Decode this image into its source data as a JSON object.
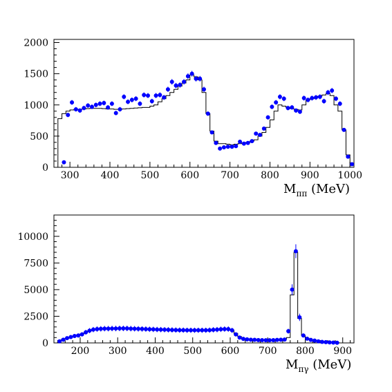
{
  "chart_data": [
    {
      "type": "scatter",
      "xlabel": "M",
      "xlabel_sub": "ππ",
      "xlabel_unit": " (MeV)",
      "xlim": [
        260,
        1010
      ],
      "ylim": [
        0,
        2050
      ],
      "xticks": [
        300,
        400,
        500,
        600,
        700,
        800,
        900,
        1000
      ],
      "yticks": [
        0,
        500,
        1000,
        1500,
        2000
      ],
      "grid": false,
      "colors": {
        "points": "#0000ff",
        "histogram": "#000000"
      },
      "series": [
        {
          "kind": "histogram",
          "bin_width": 10,
          "x": [
            275,
            285,
            295,
            305,
            315,
            325,
            335,
            345,
            355,
            365,
            375,
            385,
            395,
            405,
            415,
            425,
            435,
            445,
            455,
            465,
            475,
            485,
            495,
            505,
            515,
            525,
            535,
            545,
            555,
            565,
            575,
            585,
            595,
            605,
            615,
            625,
            635,
            645,
            655,
            665,
            675,
            685,
            695,
            705,
            715,
            725,
            735,
            745,
            755,
            765,
            775,
            785,
            795,
            805,
            815,
            825,
            835,
            845,
            855,
            865,
            875,
            885,
            895,
            905,
            915,
            925,
            935,
            945,
            955,
            965,
            975,
            985,
            995
          ],
          "y": [
            780,
            860,
            900,
            920,
            930,
            930,
            935,
            940,
            945,
            945,
            945,
            940,
            935,
            935,
            930,
            930,
            935,
            940,
            945,
            950,
            955,
            960,
            960,
            980,
            1000,
            1050,
            1100,
            1150,
            1200,
            1250,
            1300,
            1350,
            1400,
            1480,
            1450,
            1400,
            1200,
            860,
            580,
            420,
            380,
            380,
            370,
            360,
            370,
            380,
            390,
            400,
            420,
            440,
            500,
            560,
            640,
            760,
            900,
            1000,
            980,
            960,
            940,
            930,
            920,
            1000,
            1080,
            1100,
            1120,
            1140,
            1160,
            1180,
            1150,
            1000,
            900,
            600,
            200
          ]
        },
        {
          "kind": "points",
          "x": [
            285,
            295,
            305,
            315,
            325,
            335,
            345,
            355,
            365,
            375,
            385,
            395,
            405,
            415,
            425,
            435,
            445,
            455,
            465,
            475,
            485,
            495,
            505,
            515,
            525,
            535,
            545,
            555,
            565,
            575,
            585,
            595,
            605,
            615,
            625,
            635,
            645,
            655,
            665,
            675,
            685,
            695,
            705,
            715,
            725,
            735,
            745,
            755,
            765,
            775,
            785,
            795,
            805,
            815,
            825,
            835,
            845,
            855,
            865,
            875,
            885,
            895,
            905,
            915,
            925,
            935,
            945,
            955,
            965,
            975,
            985,
            995,
            1005
          ],
          "y": [
            80,
            840,
            1040,
            930,
            910,
            950,
            990,
            970,
            1000,
            1020,
            1030,
            960,
            1020,
            870,
            930,
            1130,
            1050,
            1080,
            1100,
            1020,
            1160,
            1150,
            1060,
            1150,
            1160,
            1120,
            1250,
            1370,
            1310,
            1320,
            1370,
            1460,
            1500,
            1420,
            1420,
            1250,
            860,
            560,
            390,
            300,
            320,
            330,
            330,
            340,
            410,
            380,
            390,
            420,
            540,
            520,
            620,
            800,
            970,
            1040,
            1130,
            1100,
            950,
            960,
            910,
            890,
            1110,
            1080,
            1110,
            1120,
            1130,
            1060,
            1200,
            1230,
            1100,
            1020,
            600,
            170,
            50
          ]
        }
      ]
    },
    {
      "type": "scatter",
      "xlabel": "M",
      "xlabel_sub": "πγ",
      "xlabel_unit": " (MeV)",
      "xlim": [
        130,
        930
      ],
      "ylim": [
        0,
        12000
      ],
      "xticks": [
        200,
        300,
        400,
        500,
        600,
        700,
        800,
        900
      ],
      "yticks": [
        0,
        2500,
        5000,
        7500,
        10000
      ],
      "ytick_labels": [
        "0",
        "2500",
        "5000",
        "7500",
        "10000"
      ],
      "grid": false,
      "colors": {
        "points": "#0000ff",
        "histogram": "#000000"
      },
      "series": [
        {
          "kind": "histogram",
          "bin_width": 10,
          "x": [
            145,
            155,
            165,
            175,
            185,
            195,
            205,
            215,
            225,
            235,
            245,
            255,
            265,
            275,
            285,
            295,
            305,
            315,
            325,
            335,
            345,
            355,
            365,
            375,
            385,
            395,
            405,
            415,
            425,
            435,
            445,
            455,
            465,
            475,
            485,
            495,
            505,
            515,
            525,
            535,
            545,
            555,
            565,
            575,
            585,
            595,
            605,
            615,
            625,
            635,
            645,
            655,
            665,
            675,
            685,
            695,
            705,
            715,
            725,
            735,
            745,
            755,
            765,
            775,
            785,
            795,
            805,
            815,
            825,
            835,
            845,
            855,
            865,
            875,
            885
          ],
          "y": [
            200,
            350,
            450,
            550,
            650,
            750,
            850,
            1000,
            1150,
            1250,
            1300,
            1320,
            1340,
            1350,
            1350,
            1350,
            1360,
            1360,
            1360,
            1350,
            1340,
            1330,
            1320,
            1300,
            1290,
            1280,
            1270,
            1260,
            1250,
            1240,
            1230,
            1220,
            1210,
            1200,
            1200,
            1200,
            1200,
            1200,
            1200,
            1200,
            1200,
            1220,
            1250,
            1280,
            1300,
            1300,
            1200,
            900,
            600,
            400,
            330,
            300,
            290,
            270,
            260,
            250,
            250,
            260,
            280,
            300,
            350,
            500,
            4500,
            8500,
            2300,
            700,
            450,
            300,
            250,
            200,
            150,
            100,
            80,
            50,
            30
          ]
        },
        {
          "kind": "points",
          "x": [
            145,
            155,
            165,
            175,
            185,
            195,
            205,
            215,
            225,
            235,
            245,
            255,
            265,
            275,
            285,
            295,
            305,
            315,
            325,
            335,
            345,
            355,
            365,
            375,
            385,
            395,
            405,
            415,
            425,
            435,
            445,
            455,
            465,
            475,
            485,
            495,
            505,
            515,
            525,
            535,
            545,
            555,
            565,
            575,
            585,
            595,
            605,
            615,
            625,
            635,
            645,
            655,
            665,
            675,
            685,
            695,
            705,
            715,
            725,
            735,
            745,
            755,
            765,
            775,
            785,
            795,
            805,
            815,
            825,
            835,
            845,
            855,
            865,
            875,
            885
          ],
          "y": [
            150,
            300,
            450,
            550,
            650,
            700,
            800,
            1000,
            1150,
            1250,
            1300,
            1320,
            1340,
            1340,
            1350,
            1350,
            1360,
            1360,
            1360,
            1340,
            1330,
            1320,
            1310,
            1300,
            1280,
            1270,
            1260,
            1250,
            1240,
            1230,
            1220,
            1210,
            1200,
            1200,
            1190,
            1190,
            1190,
            1190,
            1190,
            1190,
            1200,
            1230,
            1250,
            1280,
            1300,
            1300,
            1180,
            800,
            500,
            380,
            330,
            300,
            290,
            270,
            260,
            250,
            250,
            260,
            280,
            300,
            320,
            1100,
            5000,
            8600,
            2400,
            700,
            400,
            280,
            220,
            150,
            100,
            70,
            50,
            30,
            20
          ]
        }
      ]
    }
  ]
}
